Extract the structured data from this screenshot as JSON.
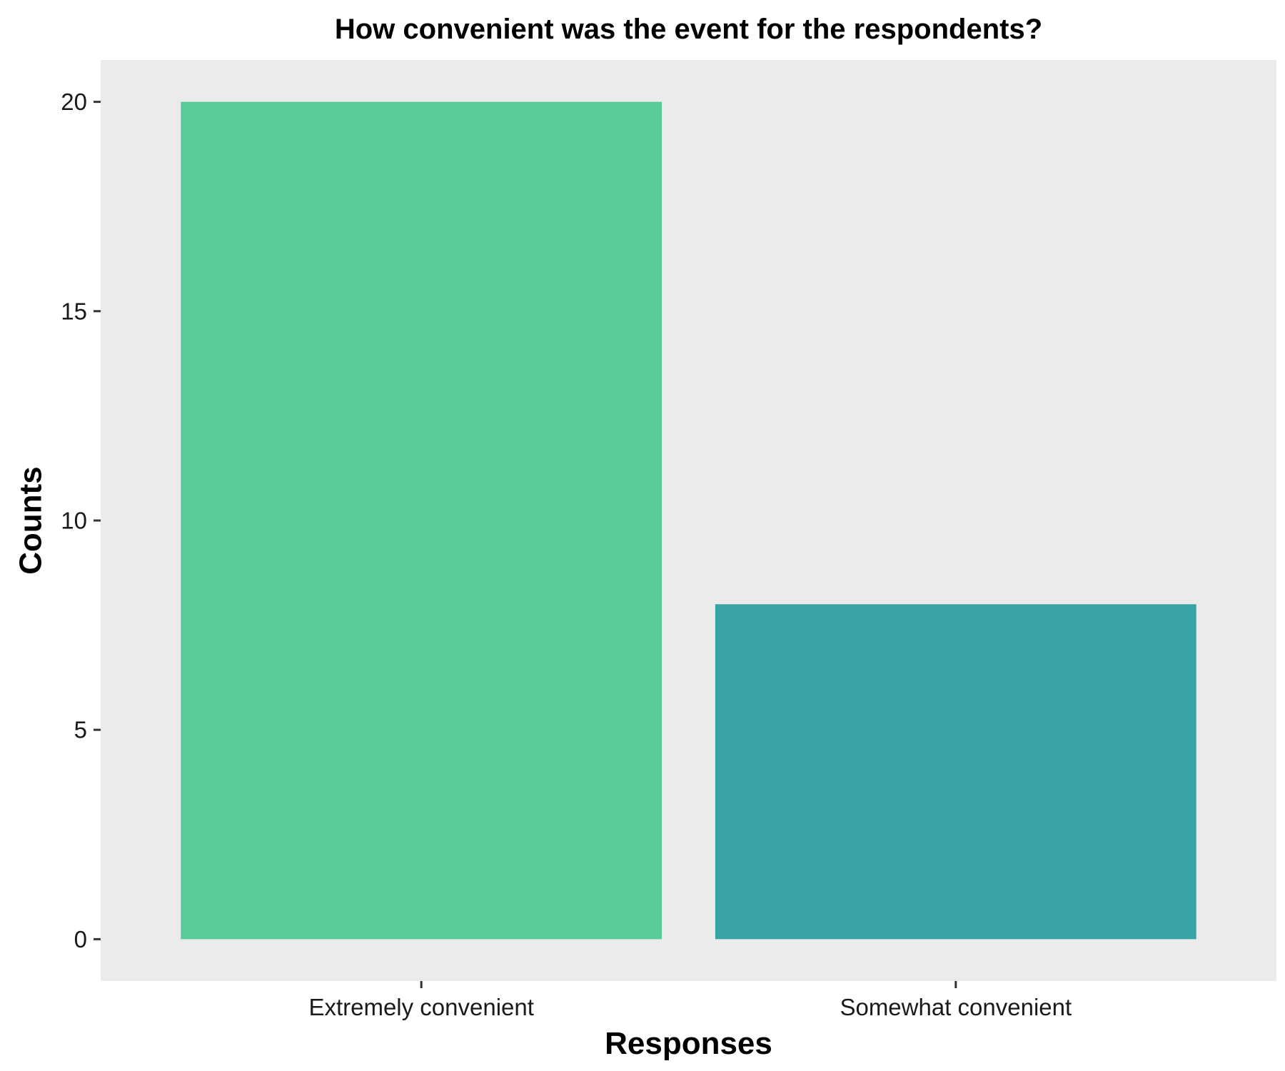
{
  "chart_data": {
    "type": "bar",
    "title": "How convenient was the event for the respondents?",
    "xlabel": "Responses",
    "ylabel": "Counts",
    "categories": [
      "Extremely convenient",
      "Somewhat convenient"
    ],
    "values": [
      20,
      8
    ],
    "bar_colors": [
      "#57CC99",
      "#38A3A5"
    ],
    "panel_background": "#EBEBEB",
    "grid": false,
    "legend": "none",
    "ylim": [
      -1,
      21
    ],
    "yticks": [
      0,
      5,
      10,
      15,
      20
    ],
    "ytick_labels": [
      "0",
      "5",
      "10",
      "15",
      "20"
    ]
  }
}
